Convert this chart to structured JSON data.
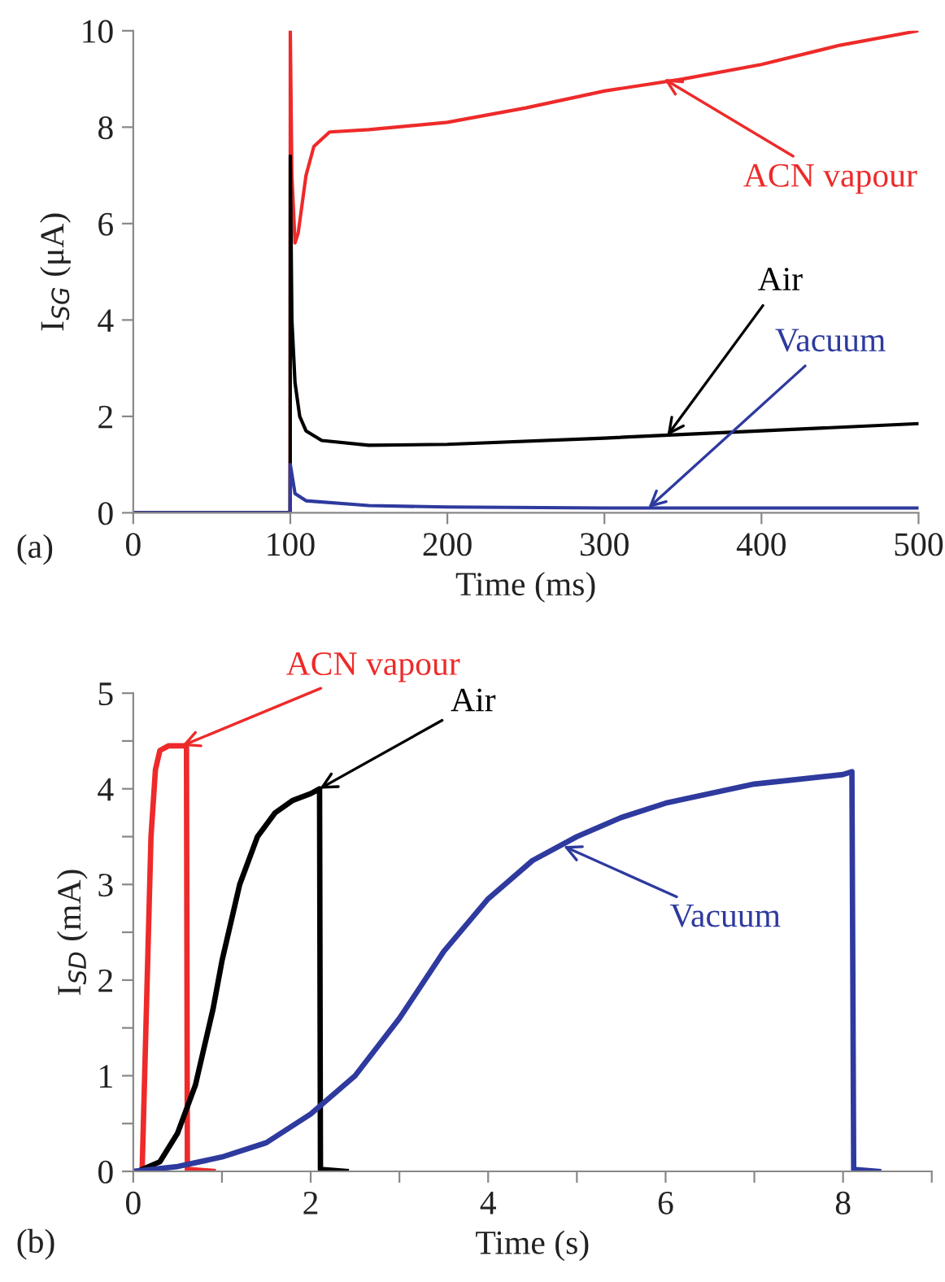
{
  "chart_data": [
    {
      "type": "line",
      "xlabel": "Time (ms)",
      "ylabel": "I$_{SG}$ (μA)",
      "xlim": [
        0,
        500
      ],
      "ylim": [
        0,
        10
      ],
      "xticks": [
        0,
        100,
        200,
        300,
        400,
        500
      ],
      "yticks": [
        0,
        2,
        4,
        6,
        8,
        10
      ],
      "grid": false,
      "legend": false,
      "series": [
        {
          "color": "#ee2a2a",
          "x": [
            0,
            99.9,
            100,
            101,
            103,
            105,
            110,
            115,
            125,
            150,
            200,
            250,
            300,
            350,
            400,
            450,
            500
          ],
          "values": [
            0,
            0,
            10,
            7,
            5.6,
            5.8,
            7,
            7.6,
            7.9,
            7.95,
            8.1,
            8.4,
            8.75,
            9.0,
            9.3,
            9.7,
            10
          ]
        },
        {
          "color": "#000000",
          "x": [
            0,
            99.9,
            100,
            101,
            103,
            106,
            110,
            120,
            150,
            200,
            300,
            400,
            500
          ],
          "values": [
            0,
            0,
            7.4,
            4,
            2.7,
            2.0,
            1.7,
            1.5,
            1.4,
            1.42,
            1.55,
            1.7,
            1.85
          ]
        },
        {
          "color": "#2e3a9e",
          "x": [
            0,
            99.9,
            100,
            103,
            110,
            150,
            200,
            300,
            400,
            500
          ],
          "values": [
            0,
            0,
            1.0,
            0.4,
            0.25,
            0.15,
            0.12,
            0.1,
            0.1,
            0.1
          ]
        }
      ],
      "annotations": [
        {
          "text": "ACN vapour",
          "x": 338,
          "y": 9.0
        },
        {
          "text": "Air",
          "x": 340,
          "y": 1.6
        },
        {
          "text": "Vacuum",
          "x": 328,
          "y": 0.1
        },
        "(a)"
      ]
    },
    {
      "type": "line",
      "xlabel": "Time (s)",
      "ylabel": "I$_{SD}$ (mA)",
      "xlim": [
        0,
        9
      ],
      "ylim": [
        0,
        5
      ],
      "xticks": [
        0,
        {
          "value": 1,
          "label": null
        },
        2,
        {
          "value": 3,
          "label": null
        },
        4,
        {
          "value": 5,
          "label": null
        },
        6,
        {
          "value": 7,
          "label": null
        },
        8,
        {
          "value": 9,
          "label": null
        }
      ],
      "yticks": [
        0,
        {
          "value": 0.5,
          "label": null
        },
        1,
        {
          "value": 1.5,
          "label": null
        },
        2,
        {
          "value": 2.5,
          "label": null
        },
        3,
        {
          "value": 3.5,
          "label": null
        },
        4,
        {
          "value": 4.5,
          "label": null
        },
        5
      ],
      "grid": false,
      "legend": false,
      "series": [
        {
          "color": "#ee2a2a",
          "x": [
            0,
            0.1,
            0.2,
            0.25,
            0.3,
            0.4,
            0.6,
            0.61,
            0.9
          ],
          "values": [
            0,
            0,
            3.5,
            4.2,
            4.4,
            4.45,
            4.45,
            0.02,
            0
          ]
        },
        {
          "color": "#000000",
          "x": [
            0.05,
            0.3,
            0.5,
            0.7,
            0.9,
            1.0,
            1.2,
            1.4,
            1.6,
            1.8,
            2.0,
            2.1,
            2.11,
            2.4
          ],
          "values": [
            0,
            0.1,
            0.4,
            0.9,
            1.7,
            2.2,
            3.0,
            3.5,
            3.75,
            3.88,
            3.95,
            4.0,
            0.02,
            0
          ]
        },
        {
          "color": "#2e3a9e",
          "x": [
            0,
            0.5,
            1.0,
            1.5,
            2.0,
            2.5,
            3.0,
            3.5,
            4.0,
            4.5,
            5.0,
            5.5,
            6.0,
            7.0,
            8.0,
            8.1,
            8.12,
            8.4
          ],
          "values": [
            0,
            0.05,
            0.15,
            0.3,
            0.6,
            1.0,
            1.6,
            2.3,
            2.85,
            3.25,
            3.5,
            3.7,
            3.85,
            4.05,
            4.15,
            4.18,
            0.02,
            0
          ]
        }
      ],
      "annotations": [
        {
          "text": "ACN vapour",
          "x": 0.55,
          "y": 4.45
        },
        {
          "text": "Air",
          "x": 2.1,
          "y": 4.0
        },
        {
          "text": "Vacuum",
          "x": 4.85,
          "y": 3.4
        },
        "(b)"
      ]
    }
  ]
}
